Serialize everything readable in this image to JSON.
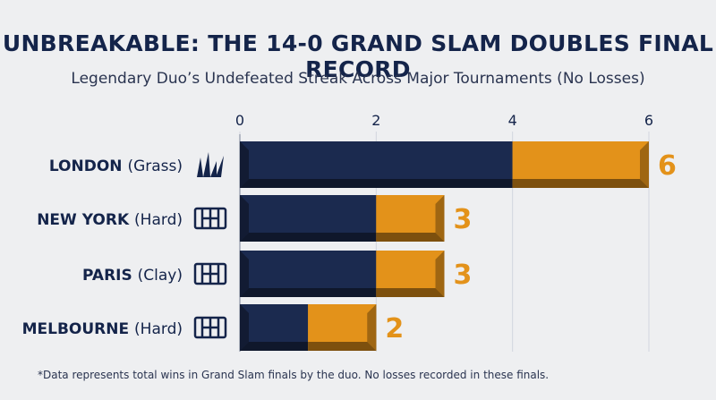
{
  "title": "UNBREAKABLE: THE 14-0 GRAND SLAM DOUBLES FINAL RECORD",
  "subtitle": "Legendary Duo’s Undefeated Streak Across Major Tournaments (No Losses)",
  "footnote": "*Data represents total wins in Grand Slam finals by the duo. No losses recorded in these finals.",
  "colors": {
    "navy": "#1b2a4f",
    "gold": "#e3921a",
    "text": "#14244a",
    "grid": "#d2d6de"
  },
  "chart_data": {
    "type": "bar",
    "orientation": "horizontal",
    "stacked": true,
    "title": "UNBREAKABLE: THE 14-0 GRAND SLAM DOUBLES FINAL RECORD",
    "subtitle": "Legendary Duo’s Undefeated Streak Across Major Tournaments (No Losses)",
    "xlim": [
      0,
      6
    ],
    "xticks": [
      "0",
      "2",
      "4",
      "6"
    ],
    "grid": true,
    "categories": [
      {
        "city": "LONDON",
        "surface": "(Grass)",
        "icon": "grass-icon"
      },
      {
        "city": "NEW YORK",
        "surface": "(Hard)",
        "icon": "court-icon"
      },
      {
        "city": "PARIS",
        "surface": "(Clay)",
        "icon": "court-icon"
      },
      {
        "city": "MELBOURNE",
        "surface": "(Hard)",
        "icon": "court-icon"
      }
    ],
    "series": [
      {
        "values": [
          4,
          2,
          2,
          1
        ],
        "color": "#1b2a4f"
      },
      {
        "values": [
          2,
          1,
          1,
          1
        ],
        "color": "#e3921a"
      }
    ],
    "totals": [
      "6",
      "3",
      "3",
      "2"
    ]
  }
}
